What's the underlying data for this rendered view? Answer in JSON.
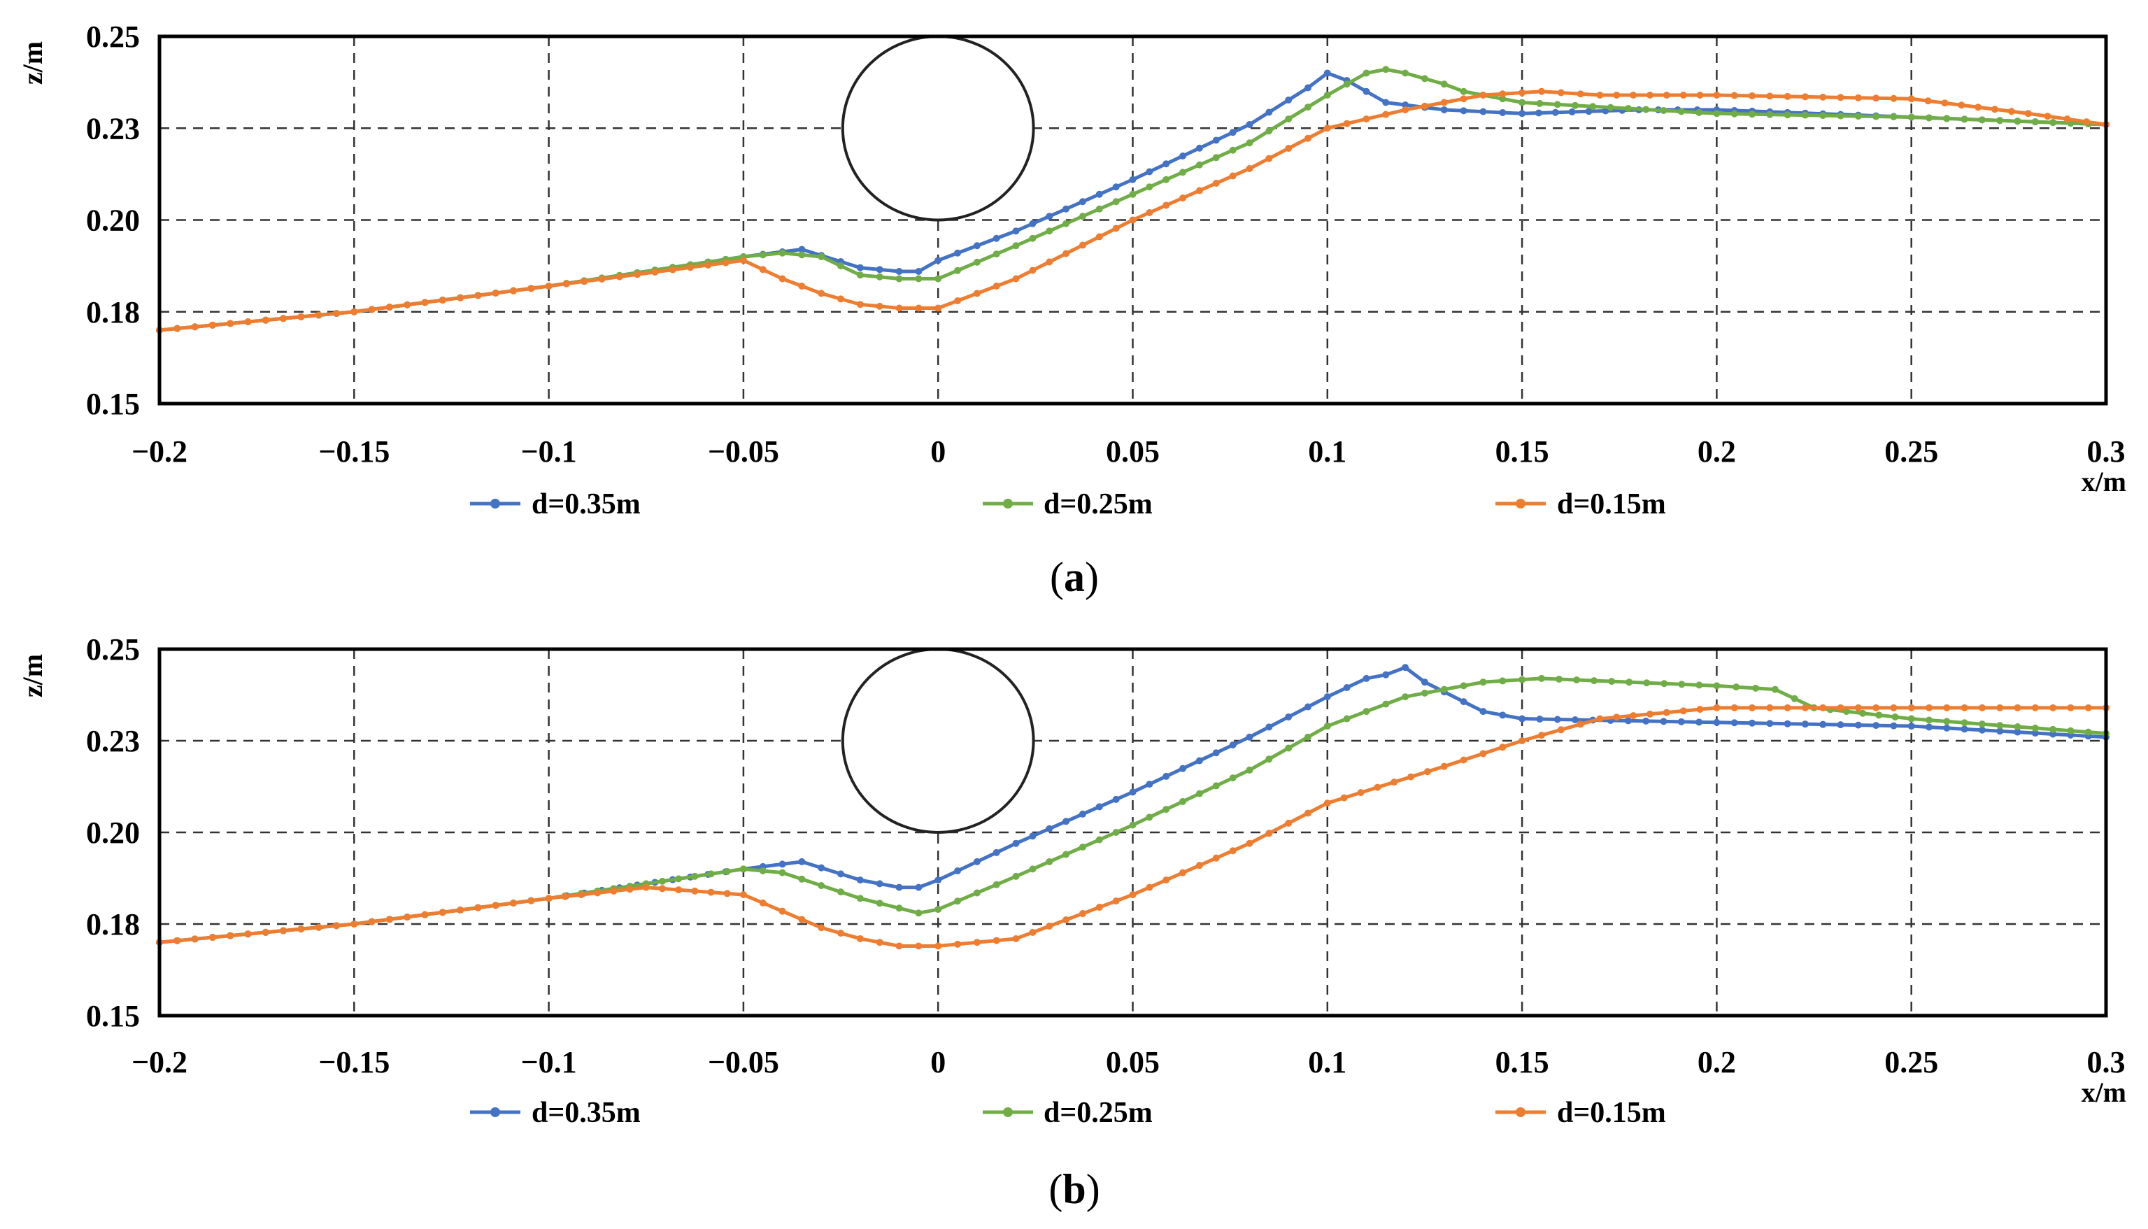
{
  "chart_data": [
    {
      "type": "line",
      "panel_caption": {
        "open": "(",
        "letter": "a",
        "close": ")"
      },
      "xlabel": "x/m",
      "ylabel": "z/m",
      "xlim": [
        -0.2,
        0.3
      ],
      "ylim": [
        0.15,
        0.25
      ],
      "x_ticks": [
        "−0.2",
        "−0.15",
        "−0.1",
        "−0.05",
        "0",
        "0.05",
        "0.1",
        "0.15",
        "0.2",
        "0.25",
        "0.3"
      ],
      "y_ticks": [
        "0.25",
        "0.23",
        "0.20",
        "0.18",
        "0.15"
      ],
      "grid": true,
      "legend_position": "bottom",
      "obstacle": {
        "shape": "circle",
        "center_x": 0.0,
        "center_z": 0.225,
        "radius_x": 0.0245,
        "radius_z": 0.025
      },
      "series": [
        {
          "name": "d=0.35m",
          "color": "#4472C4",
          "x": [
            -0.2,
            -0.15,
            -0.1,
            -0.05,
            -0.035,
            -0.02,
            -0.01,
            -0.005,
            0.0,
            0.02,
            0.05,
            0.08,
            0.095,
            0.1,
            0.105,
            0.115,
            0.13,
            0.15,
            0.18,
            0.2,
            0.25,
            0.3
          ],
          "y": [
            0.17,
            0.175,
            0.182,
            0.19,
            0.192,
            0.187,
            0.186,
            0.186,
            0.189,
            0.197,
            0.211,
            0.226,
            0.236,
            0.24,
            0.238,
            0.232,
            0.23,
            0.229,
            0.23,
            0.23,
            0.228,
            0.226
          ]
        },
        {
          "name": "d=0.25m",
          "color": "#70AD47",
          "x": [
            -0.2,
            -0.15,
            -0.1,
            -0.05,
            -0.04,
            -0.03,
            -0.02,
            -0.01,
            0.0,
            0.02,
            0.05,
            0.08,
            0.1,
            0.11,
            0.115,
            0.12,
            0.13,
            0.135,
            0.15,
            0.2,
            0.25,
            0.3
          ],
          "y": [
            0.17,
            0.175,
            0.182,
            0.19,
            0.191,
            0.19,
            0.185,
            0.184,
            0.184,
            0.193,
            0.207,
            0.221,
            0.234,
            0.24,
            0.241,
            0.24,
            0.237,
            0.235,
            0.232,
            0.229,
            0.228,
            0.226
          ]
        },
        {
          "name": "d=0.15m",
          "color": "#ED7D31",
          "x": [
            -0.2,
            -0.15,
            -0.1,
            -0.05,
            -0.04,
            -0.03,
            -0.02,
            -0.01,
            0.0,
            0.02,
            0.05,
            0.08,
            0.1,
            0.12,
            0.14,
            0.155,
            0.17,
            0.2,
            0.25,
            0.28,
            0.3
          ],
          "y": [
            0.17,
            0.175,
            0.182,
            0.189,
            0.184,
            0.18,
            0.177,
            0.176,
            0.176,
            0.184,
            0.2,
            0.214,
            0.225,
            0.23,
            0.234,
            0.235,
            0.234,
            0.234,
            0.233,
            0.229,
            0.226
          ]
        }
      ]
    },
    {
      "type": "line",
      "panel_caption": {
        "open": "(",
        "letter": "b",
        "close": ")"
      },
      "xlabel": "x/m",
      "ylabel": "z/m",
      "xlim": [
        -0.2,
        0.3
      ],
      "ylim": [
        0.15,
        0.25
      ],
      "x_ticks": [
        "−0.2",
        "−0.15",
        "−0.1",
        "−0.05",
        "0",
        "0.05",
        "0.1",
        "0.15",
        "0.2",
        "0.25",
        "0.3"
      ],
      "y_ticks": [
        "0.25",
        "0.23",
        "0.20",
        "0.18",
        "0.15"
      ],
      "grid": true,
      "legend_position": "bottom",
      "obstacle": {
        "shape": "circle",
        "center_x": 0.0,
        "center_z": 0.225,
        "radius_x": 0.0245,
        "radius_z": 0.025
      },
      "series": [
        {
          "name": "d=0.35m",
          "color": "#4472C4",
          "x": [
            -0.2,
            -0.15,
            -0.1,
            -0.05,
            -0.035,
            -0.02,
            -0.01,
            -0.005,
            0.0,
            0.02,
            0.05,
            0.08,
            0.1,
            0.11,
            0.115,
            0.12,
            0.125,
            0.14,
            0.15,
            0.2,
            0.25,
            0.3
          ],
          "y": [
            0.17,
            0.175,
            0.182,
            0.19,
            0.192,
            0.187,
            0.185,
            0.185,
            0.187,
            0.197,
            0.211,
            0.226,
            0.237,
            0.242,
            0.243,
            0.245,
            0.241,
            0.233,
            0.231,
            0.23,
            0.229,
            0.226
          ]
        },
        {
          "name": "d=0.25m",
          "color": "#70AD47",
          "x": [
            -0.2,
            -0.15,
            -0.1,
            -0.075,
            -0.05,
            -0.04,
            -0.02,
            -0.005,
            0.0,
            0.02,
            0.05,
            0.08,
            0.1,
            0.12,
            0.14,
            0.155,
            0.2,
            0.215,
            0.225,
            0.25,
            0.3
          ],
          "y": [
            0.17,
            0.175,
            0.182,
            0.186,
            0.19,
            0.189,
            0.182,
            0.178,
            0.179,
            0.188,
            0.202,
            0.217,
            0.229,
            0.237,
            0.241,
            0.242,
            0.24,
            0.239,
            0.234,
            0.231,
            0.227
          ]
        },
        {
          "name": "d=0.15m",
          "color": "#ED7D31",
          "x": [
            -0.2,
            -0.15,
            -0.1,
            -0.075,
            -0.05,
            -0.03,
            -0.02,
            -0.01,
            0.0,
            0.02,
            0.05,
            0.08,
            0.1,
            0.13,
            0.15,
            0.17,
            0.2,
            0.25,
            0.3
          ],
          "y": [
            0.17,
            0.175,
            0.182,
            0.185,
            0.183,
            0.174,
            0.171,
            0.169,
            0.169,
            0.171,
            0.183,
            0.197,
            0.208,
            0.218,
            0.225,
            0.231,
            0.234,
            0.234,
            0.234
          ]
        }
      ]
    }
  ]
}
